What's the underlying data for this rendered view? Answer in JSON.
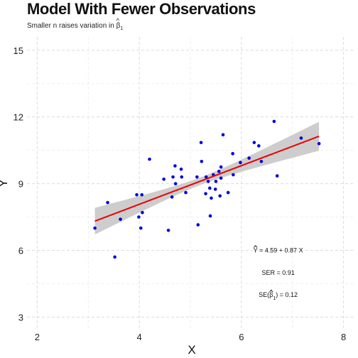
{
  "header": {
    "title": "Model With Fewer Observations",
    "subtitle_text": "Smaller n raises variation in ",
    "subtitle_symbol": "β",
    "subtitle_sub": "1"
  },
  "chart_data": {
    "type": "scatter",
    "title": "Model With Fewer Observations",
    "subtitle": "Smaller n raises variation in β̂1",
    "xlabel": "X",
    "ylabel": "Y",
    "xlim": [
      1.8,
      8.2
    ],
    "ylim": [
      2.5,
      15.6
    ],
    "x_ticks": [
      2,
      4,
      6,
      8
    ],
    "y_ticks": [
      3,
      6,
      9,
      12,
      15
    ],
    "grid": true,
    "point_color": "#0000dd",
    "line_color": "#ee0000",
    "band_color": "#c8c8c8",
    "points": [
      {
        "x": 3.13,
        "y": 7.0
      },
      {
        "x": 3.38,
        "y": 8.15
      },
      {
        "x": 3.52,
        "y": 5.7
      },
      {
        "x": 3.63,
        "y": 7.4
      },
      {
        "x": 3.95,
        "y": 8.5
      },
      {
        "x": 3.99,
        "y": 7.5
      },
      {
        "x": 4.03,
        "y": 7.0
      },
      {
        "x": 4.05,
        "y": 8.5
      },
      {
        "x": 4.06,
        "y": 7.7
      },
      {
        "x": 4.2,
        "y": 10.1
      },
      {
        "x": 4.48,
        "y": 9.2
      },
      {
        "x": 4.57,
        "y": 6.9
      },
      {
        "x": 4.64,
        "y": 8.4
      },
      {
        "x": 4.66,
        "y": 9.3
      },
      {
        "x": 4.7,
        "y": 9.8
      },
      {
        "x": 4.71,
        "y": 9.0
      },
      {
        "x": 4.82,
        "y": 9.65
      },
      {
        "x": 4.83,
        "y": 9.3
      },
      {
        "x": 4.91,
        "y": 8.6
      },
      {
        "x": 5.13,
        "y": 9.3
      },
      {
        "x": 5.15,
        "y": 7.15
      },
      {
        "x": 5.21,
        "y": 10.85
      },
      {
        "x": 5.22,
        "y": 10.0
      },
      {
        "x": 5.3,
        "y": 8.55
      },
      {
        "x": 5.31,
        "y": 9.3
      },
      {
        "x": 5.35,
        "y": 9.1
      },
      {
        "x": 5.38,
        "y": 8.8
      },
      {
        "x": 5.39,
        "y": 7.55
      },
      {
        "x": 5.41,
        "y": 8.35
      },
      {
        "x": 5.45,
        "y": 9.4
      },
      {
        "x": 5.49,
        "y": 8.75
      },
      {
        "x": 5.5,
        "y": 9.1
      },
      {
        "x": 5.56,
        "y": 9.55
      },
      {
        "x": 5.58,
        "y": 8.45
      },
      {
        "x": 5.6,
        "y": 9.25
      },
      {
        "x": 5.6,
        "y": 9.75
      },
      {
        "x": 5.64,
        "y": 11.2
      },
      {
        "x": 5.74,
        "y": 8.6
      },
      {
        "x": 5.83,
        "y": 10.35
      },
      {
        "x": 5.84,
        "y": 9.4
      },
      {
        "x": 5.98,
        "y": 9.95
      },
      {
        "x": 6.15,
        "y": 10.15
      },
      {
        "x": 6.25,
        "y": 10.85
      },
      {
        "x": 6.34,
        "y": 10.7
      },
      {
        "x": 6.39,
        "y": 10.0
      },
      {
        "x": 6.64,
        "y": 11.8
      },
      {
        "x": 6.7,
        "y": 9.35
      },
      {
        "x": 7.17,
        "y": 11.05
      },
      {
        "x": 7.52,
        "y": 10.8
      }
    ],
    "fit": {
      "intercept": 4.59,
      "slope": 0.87,
      "x_range": [
        3.13,
        7.52
      ]
    },
    "band_halfwidth": {
      "at_start": 0.6,
      "at_center": 0.17,
      "at_end": 0.65,
      "center_x": 5.2
    },
    "annotations": {
      "eq_y": "Y",
      "eq_rest": " = 4.59 + 0.87 X",
      "ser": "SER = 0.91",
      "se_pre": "SE(",
      "se_beta": "β",
      "se_sub": "1",
      "se_post": ") = 0.12"
    },
    "annotation_pos": {
      "x": 6.72,
      "y_eq": 6.0,
      "y_ser": 5.0,
      "y_se": 4.0
    }
  }
}
